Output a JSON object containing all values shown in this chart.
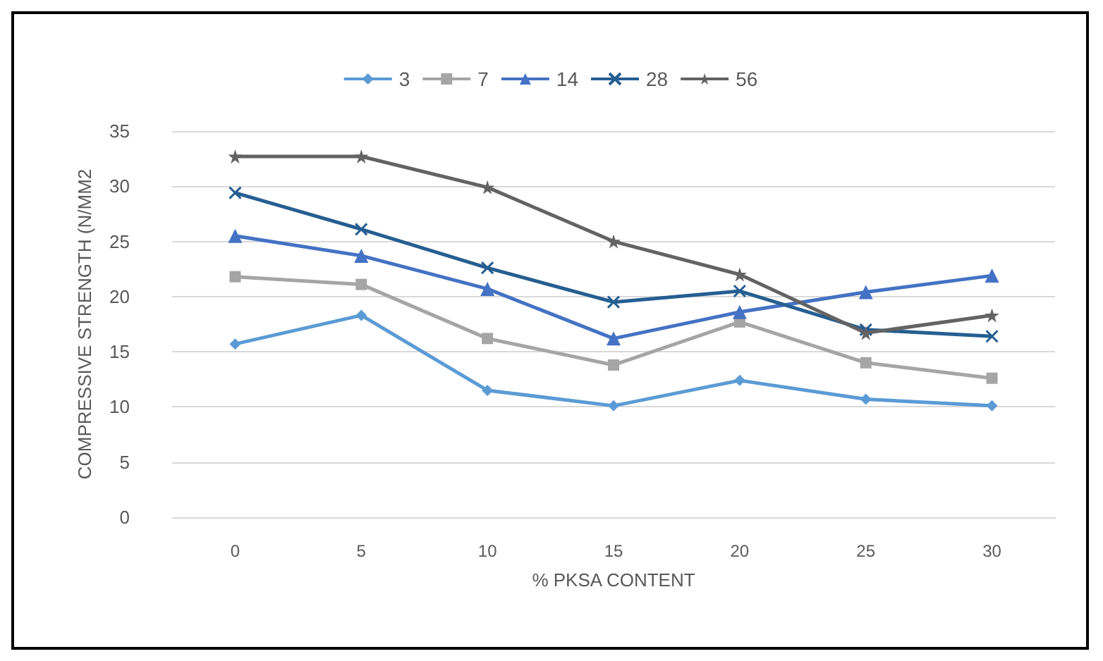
{
  "chart_data": {
    "type": "line",
    "xlabel": "% PKSA CONTENT",
    "ylabel": "COMPRESSIVE STRENGTH (N/MM2",
    "categories": [
      "0",
      "5",
      "10",
      "15",
      "20",
      "25",
      "30"
    ],
    "ylim": [
      0,
      35
    ],
    "yticks": [
      0,
      5,
      10,
      15,
      20,
      25,
      30,
      35
    ],
    "grid": "y",
    "legend": "top",
    "series": [
      {
        "name": "3",
        "color": "#5b9bd5",
        "marker": "diamond",
        "values": [
          15.7,
          18.3,
          11.5,
          10.1,
          12.4,
          10.7,
          10.1
        ]
      },
      {
        "name": "7",
        "color": "#a5a5a5",
        "marker": "square",
        "values": [
          21.8,
          21.1,
          16.2,
          13.8,
          17.7,
          14.0,
          12.6
        ]
      },
      {
        "name": "14",
        "color": "#4472c4",
        "marker": "triangle",
        "values": [
          25.5,
          23.7,
          20.7,
          16.2,
          18.6,
          20.4,
          21.9
        ]
      },
      {
        "name": "28",
        "color": "#255e91",
        "marker": "cross",
        "values": [
          29.4,
          26.1,
          22.6,
          19.5,
          20.5,
          17.0,
          16.4
        ]
      },
      {
        "name": "56",
        "color": "#636363",
        "marker": "star",
        "values": [
          32.7,
          32.7,
          29.9,
          25.0,
          22.0,
          16.7,
          18.3
        ]
      }
    ]
  }
}
